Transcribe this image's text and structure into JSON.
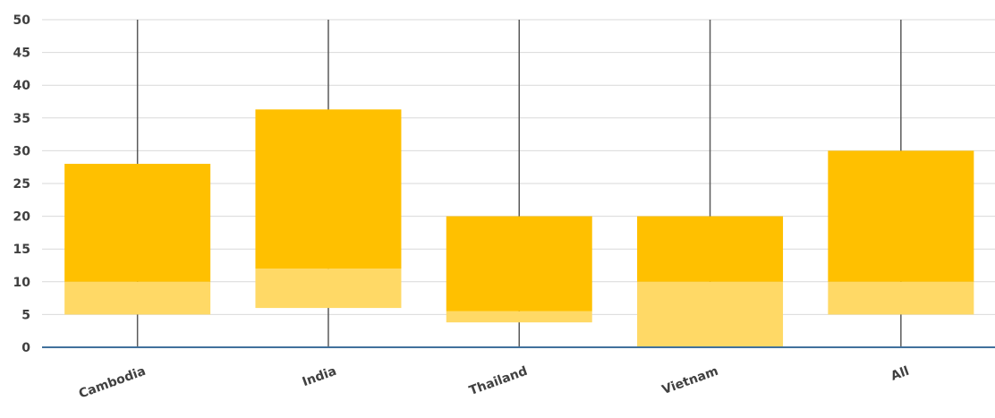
{
  "chart_data": {
    "type": "bar",
    "subtype": "box-range",
    "categories": [
      "Cambodia",
      "India",
      "Thailand",
      "Vietnam",
      "All"
    ],
    "series": [
      {
        "values": [
          {
            "low": 5,
            "q1": 10,
            "q3": 28,
            "min": 0,
            "max": 50
          },
          {
            "low": 6,
            "q1": 12,
            "q3": 36.3,
            "min": 0,
            "max": 50
          },
          {
            "low": 3.8,
            "q1": 5.5,
            "q3": 20,
            "min": 0,
            "max": 50
          },
          {
            "low": 0,
            "q1": 10,
            "q3": 20,
            "min": 0,
            "max": 50
          },
          {
            "low": 5,
            "q1": 10,
            "q3": 30,
            "min": 0,
            "max": 50
          }
        ]
      }
    ],
    "ylim": [
      0,
      50
    ],
    "yticks": [
      0,
      5,
      10,
      15,
      20,
      25,
      30,
      35,
      40,
      45,
      50
    ],
    "title": "",
    "xlabel": "",
    "ylabel": "",
    "grid": true,
    "colors": {
      "upper_box": "#ffc000",
      "lower_box": "#ffd966",
      "whisker": "#595959",
      "grid": "#d9d9d9",
      "axis": "#41719c"
    }
  }
}
